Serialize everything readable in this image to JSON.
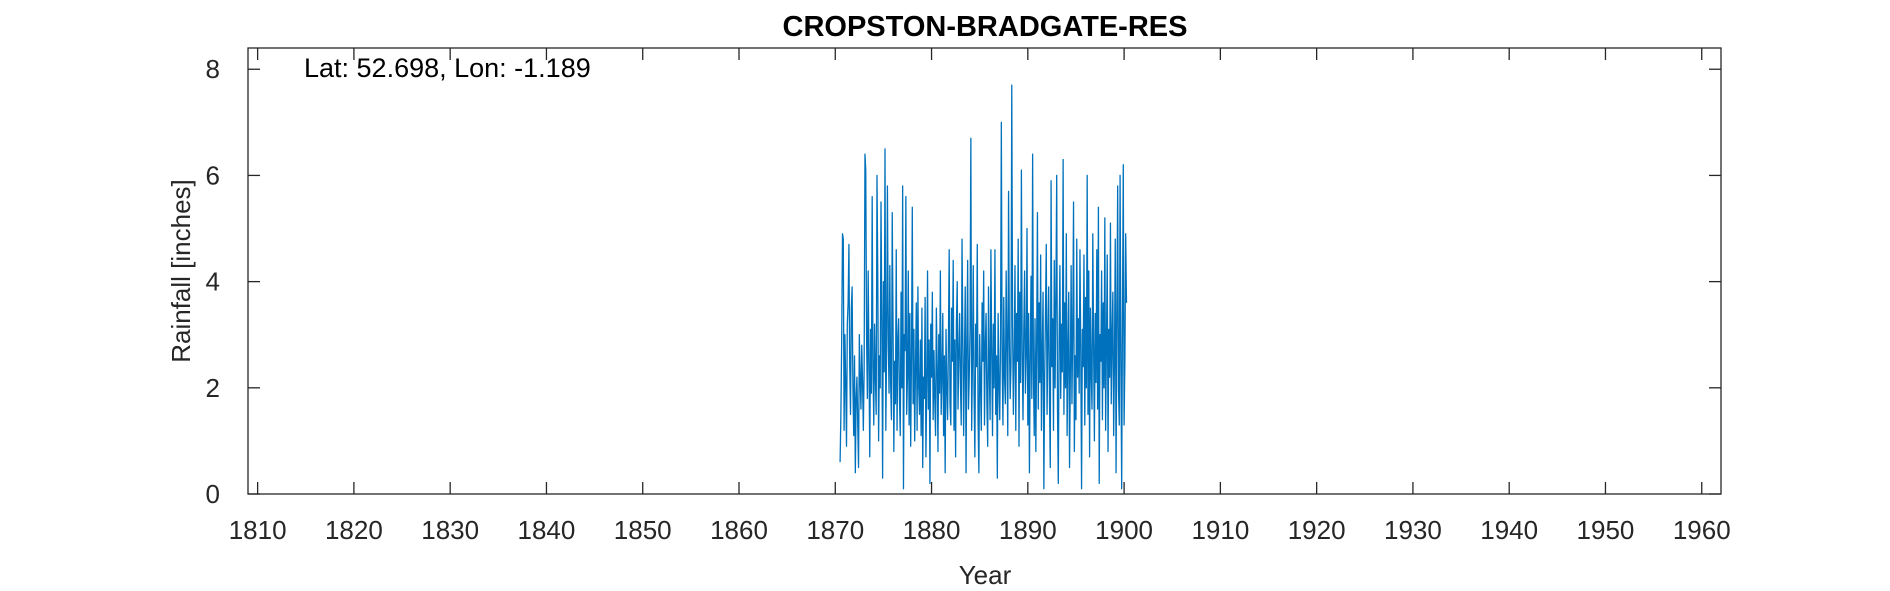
{
  "chart_data": {
    "type": "line",
    "title": "CROPSTON-BRADGATE-RES",
    "xlabel": "Year",
    "ylabel": "Rainfall [inches]",
    "annotation": "Lat: 52.698, Lon: -1.189",
    "xlim": [
      1809,
      1962
    ],
    "ylim": [
      0,
      8.4
    ],
    "xticks": [
      1810,
      1820,
      1830,
      1840,
      1850,
      1860,
      1870,
      1880,
      1890,
      1900,
      1910,
      1920,
      1930,
      1940,
      1950,
      1960
    ],
    "yticks": [
      0,
      2,
      4,
      6,
      8
    ],
    "grid": false,
    "series_color": "#0072bd",
    "series": [
      {
        "x_start": 1870.5,
        "x_step": 0.08333,
        "values": [
          0.6,
          1.5,
          2.9,
          4.9,
          4.8,
          1.2,
          3.0,
          2.1,
          0.9,
          3.2,
          3.6,
          4.7,
          2.4,
          1.5,
          3.5,
          3.9,
          2.0,
          1.1,
          2.6,
          0.4,
          1.8,
          2.2,
          1.3,
          0.5,
          3.0,
          2.2,
          1.6,
          2.8,
          2.1,
          1.2,
          2.4,
          6.4,
          6.1,
          3.0,
          1.8,
          4.2,
          2.5,
          0.7,
          3.1,
          1.9,
          5.6,
          2.4,
          1.3,
          3.2,
          2.2,
          1.5,
          6.0,
          4.1,
          1.0,
          2.6,
          2.0,
          5.5,
          3.3,
          0.3,
          4.0,
          2.3,
          6.5,
          1.2,
          2.8,
          5.8,
          3.0,
          1.9,
          4.3,
          2.1,
          1.4,
          5.3,
          3.2,
          0.8,
          2.5,
          1.7,
          4.6,
          1.2,
          2.9,
          3.3,
          1.8,
          1.1,
          3.8,
          2.0,
          5.8,
          0.1,
          3.0,
          2.7,
          5.6,
          1.5,
          2.2,
          4.2,
          1.3,
          3.4,
          0.9,
          2.6,
          5.4,
          1.7,
          3.1,
          1.0,
          2.4,
          3.6,
          1.2,
          3.9,
          2.0,
          1.5,
          2.9,
          1.1,
          3.5,
          0.5,
          2.2,
          1.8,
          3.7,
          0.7,
          2.0,
          4.2,
          1.6,
          2.9,
          0.2,
          3.2,
          2.2,
          3.8,
          1.4,
          2.7,
          1.8,
          1.1,
          3.5,
          2.4,
          0.8,
          3.0,
          1.9,
          4.2,
          1.5,
          2.2,
          3.4,
          1.1,
          2.6,
          0.4,
          3.1,
          2.0,
          1.4,
          2.8,
          4.6,
          1.7,
          1.3,
          3.5,
          2.5,
          4.4,
          1.2,
          2.9,
          0.7,
          3.2,
          4.0,
          1.6,
          2.6,
          3.4,
          2.1,
          1.3,
          4.8,
          3.0,
          1.1,
          2.5,
          3.9,
          0.4,
          2.8,
          4.4,
          1.6,
          2.2,
          3.1,
          6.7,
          1.2,
          2.5,
          4.3,
          1.9,
          0.7,
          3.2,
          2.4,
          4.7,
          1.4,
          0.4,
          3.0,
          2.1,
          1.2,
          3.6,
          2.5,
          4.2,
          1.3,
          2.8,
          3.4,
          1.7,
          0.9,
          3.9,
          2.3,
          1.4,
          4.6,
          2.7,
          1.1,
          3.2,
          2.0,
          4.6,
          1.5,
          2.6,
          0.3,
          3.4,
          2.1,
          1.4,
          2.9,
          7.0,
          2.5,
          1.3,
          3.7,
          2.2,
          1.7,
          4.2,
          2.8,
          1.1,
          5.7,
          3.0,
          1.8,
          2.4,
          7.7,
          3.2,
          1.5,
          2.6,
          4.3,
          1.2,
          3.4,
          2.5,
          4.8,
          0.9,
          3.8,
          2.1,
          6.1,
          2.7,
          1.4,
          3.1,
          4.2,
          1.9,
          2.6,
          5.0,
          1.3,
          3.4,
          0.4,
          2.5,
          4.1,
          1.8,
          6.4,
          2.3,
          1.1,
          3.3,
          0.8,
          2.8,
          5.3,
          1.6,
          3.6,
          2.1,
          4.5,
          1.2,
          2.7,
          3.8,
          0.1,
          2.2,
          3.4,
          4.7,
          1.5,
          2.9,
          3.9,
          1.8,
          0.5,
          5.9,
          2.4,
          3.3,
          1.2,
          4.4,
          2.0,
          3.7,
          6.0,
          1.6,
          0.2,
          2.9,
          4.3,
          1.8,
          3.2,
          2.3,
          6.3,
          1.5,
          3.6,
          2.0,
          4.9,
          1.1,
          2.7,
          3.8,
          0.5,
          2.3,
          4.3,
          1.7,
          3.1,
          5.5,
          0.8,
          2.6,
          1.4,
          4.8,
          2.2,
          3.3,
          1.9,
          4.6,
          2.7,
          0.1,
          3.1,
          2.4,
          4.5,
          1.3,
          3.7,
          2.0,
          6.0,
          1.5,
          4.2,
          0.7,
          3.5,
          2.3,
          1.6,
          4.9,
          2.8,
          1.0,
          3.4,
          2.1,
          4.6,
          1.6,
          5.4,
          0.2,
          3.0,
          2.5,
          4.2,
          1.4,
          3.6,
          2.0,
          5.2,
          1.2,
          2.8,
          4.5,
          0.8,
          3.1,
          2.2,
          5.1,
          1.7,
          2.9,
          3.8,
          1.1,
          2.5,
          4.8,
          0.4,
          3.3,
          5.8,
          2.0,
          1.3,
          6.0,
          2.6,
          0.1,
          3.4,
          6.2,
          1.3,
          2.5,
          4.9,
          3.6
        ]
      }
    ]
  }
}
